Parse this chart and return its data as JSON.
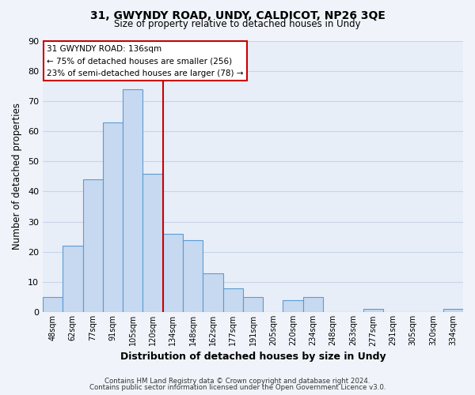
{
  "title": "31, GWYNDY ROAD, UNDY, CALDICOT, NP26 3QE",
  "subtitle": "Size of property relative to detached houses in Undy",
  "xlabel": "Distribution of detached houses by size in Undy",
  "ylabel": "Number of detached properties",
  "bar_labels": [
    "48sqm",
    "62sqm",
    "77sqm",
    "91sqm",
    "105sqm",
    "120sqm",
    "134sqm",
    "148sqm",
    "162sqm",
    "177sqm",
    "191sqm",
    "205sqm",
    "220sqm",
    "234sqm",
    "248sqm",
    "263sqm",
    "277sqm",
    "291sqm",
    "305sqm",
    "320sqm",
    "334sqm"
  ],
  "bar_heights": [
    5,
    22,
    44,
    63,
    74,
    46,
    26,
    24,
    13,
    8,
    5,
    0,
    4,
    5,
    0,
    0,
    1,
    0,
    0,
    0,
    1
  ],
  "bar_color": "#c6d9f0",
  "bar_edge_color": "#5b9bd5",
  "vline_x_idx": 6,
  "vline_color": "#cc0000",
  "ylim": [
    0,
    90
  ],
  "yticks": [
    0,
    10,
    20,
    30,
    40,
    50,
    60,
    70,
    80,
    90
  ],
  "annotation_title": "31 GWYNDY ROAD: 136sqm",
  "annotation_line1": "← 75% of detached houses are smaller (256)",
  "annotation_line2": "23% of semi-detached houses are larger (78) →",
  "annotation_box_color": "#ffffff",
  "annotation_box_edge": "#cc0000",
  "footer_line1": "Contains HM Land Registry data © Crown copyright and database right 2024.",
  "footer_line2": "Contains public sector information licensed under the Open Government Licence v3.0.",
  "background_color": "#f0f4fa",
  "plot_bg_color": "#e8eef8",
  "grid_color": "#c8d4e8"
}
